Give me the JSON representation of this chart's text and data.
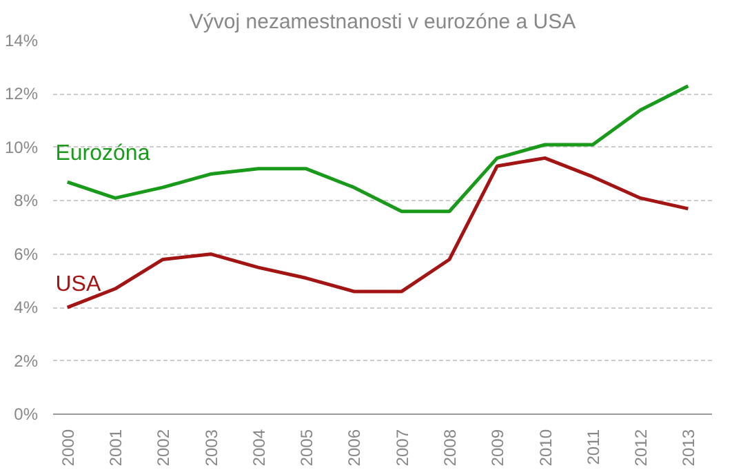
{
  "chart_data": {
    "type": "line",
    "title": "Vývoj nezamestnanosti v eurozóne a USA",
    "categories": [
      "2000",
      "2001",
      "2002",
      "2003",
      "2004",
      "2005",
      "2006",
      "2007",
      "2008",
      "2009",
      "2010",
      "2011",
      "2012",
      "2013"
    ],
    "series": [
      {
        "name": "Eurozóna",
        "color": "#1a9a1a",
        "values": [
          8.7,
          8.1,
          8.5,
          9.0,
          9.2,
          9.2,
          8.5,
          7.6,
          7.6,
          9.6,
          10.1,
          10.1,
          11.4,
          12.3
        ]
      },
      {
        "name": "USA",
        "color": "#a31515",
        "values": [
          4.0,
          4.7,
          5.8,
          6.0,
          5.5,
          5.1,
          4.6,
          4.6,
          5.8,
          9.3,
          9.6,
          8.9,
          8.1,
          7.7
        ]
      }
    ],
    "ylim": [
      0,
      14
    ],
    "yticks": [
      {
        "value": 0,
        "label": "0%"
      },
      {
        "value": 2,
        "label": "2%"
      },
      {
        "value": 4,
        "label": "4%"
      },
      {
        "value": 6,
        "label": "6%"
      },
      {
        "value": 8,
        "label": "8%"
      },
      {
        "value": 10,
        "label": "10%"
      },
      {
        "value": 12,
        "label": "12%"
      },
      {
        "value": 14,
        "label": "14%"
      }
    ],
    "grid": "y",
    "legend": false,
    "marker": "none",
    "line_style": "solid"
  }
}
